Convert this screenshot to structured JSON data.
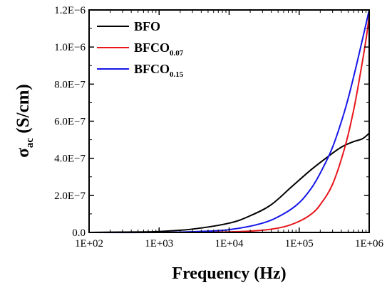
{
  "chart_data": {
    "type": "line",
    "xlabel": "Frequency (Hz)",
    "ylabel_main": "σ",
    "ylabel_sub": "ac",
    "ylabel_unit": " (S/cm)",
    "x_scale": "log",
    "xlim": [
      100,
      1000000
    ],
    "ylim": [
      0,
      1.2e-06
    ],
    "x_ticks": [
      100,
      1000,
      10000,
      100000,
      1000000
    ],
    "x_tick_labels": [
      "1E+02",
      "1E+03",
      "1E+04",
      "1E+05",
      "1E+06"
    ],
    "y_ticks": [
      0,
      2e-07,
      4e-07,
      6e-07,
      8e-07,
      1e-06,
      1.2e-06
    ],
    "y_tick_labels": [
      "0.0",
      "2.0E−7",
      "4.0E−7",
      "6.0E−7",
      "8.0E−7",
      "1.0E−6",
      "1.2E−6"
    ],
    "legend_position": "top-left",
    "grid": false,
    "series": [
      {
        "name": "BFO",
        "name_sub": "",
        "color": "#000000",
        "x": [
          100,
          300,
          1000,
          3000,
          10000,
          20000,
          40000,
          80000,
          150000,
          250000,
          400000,
          600000,
          800000,
          1000000
        ],
        "y": [
          0,
          2e-09,
          5e-09,
          1.8e-08,
          5e-08,
          9e-08,
          1.5e-07,
          2.5e-07,
          3.4e-07,
          4.05e-07,
          4.6e-07,
          4.9e-07,
          5.05e-07,
          5.35e-07
        ]
      },
      {
        "name": "BFCO",
        "name_sub": "0.07",
        "color": "#e8151b",
        "x": [
          100,
          1000,
          10000,
          30000,
          60000,
          100000,
          150000,
          200000,
          300000,
          450000,
          600000,
          750000,
          900000,
          1000000
        ],
        "y": [
          0,
          0,
          3e-09,
          1.2e-08,
          3e-08,
          6e-08,
          1e-07,
          1.5e-07,
          2.6e-07,
          4.6e-07,
          6.6e-07,
          8.6e-07,
          1.04e-06,
          1.17e-06
        ]
      },
      {
        "name": "BFCO",
        "name_sub": "0.15",
        "color": "#1515e8",
        "x": [
          100,
          1000,
          3000,
          10000,
          30000,
          60000,
          100000,
          150000,
          200000,
          300000,
          450000,
          600000,
          800000,
          1000000
        ],
        "y": [
          0,
          0,
          4e-09,
          1.5e-08,
          5e-08,
          1e-07,
          1.6e-07,
          2.4e-07,
          3.2e-07,
          4.6e-07,
          6.6e-07,
          8.4e-07,
          1.04e-06,
          1.2e-06
        ]
      }
    ]
  }
}
